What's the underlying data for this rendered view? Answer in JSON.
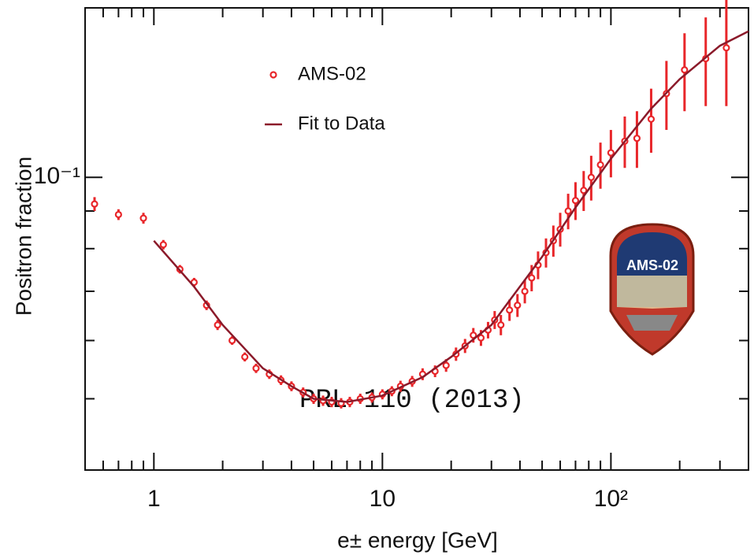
{
  "chart_data": {
    "type": "scatter",
    "x_label": "e± energy [GeV]",
    "y_label": "Positron fraction",
    "x_log": true,
    "y_log": true,
    "xlim": [
      0.5,
      400
    ],
    "ylim": [
      0.04,
      0.17
    ],
    "xticks": [
      1,
      10,
      {
        "value": 100,
        "label": "10²"
      }
    ],
    "yticks": [
      {
        "value": 0.1,
        "label": "10⁻¹"
      }
    ],
    "xminorticks": [
      0.6,
      0.7,
      0.8,
      0.9,
      2,
      3,
      4,
      5,
      6,
      7,
      8,
      9,
      20,
      30,
      40,
      50,
      60,
      70,
      80,
      90,
      200,
      300
    ],
    "yminorticks": [
      0.05,
      0.06,
      0.07,
      0.08,
      0.09
    ],
    "annotation": "PRL 110 (2013)",
    "logo_text": "AMS-02",
    "series": [
      {
        "name": "AMS-02",
        "color": "#e8262a",
        "kind": "points",
        "x": [
          0.55,
          0.7,
          0.9,
          1.1,
          1.3,
          1.5,
          1.7,
          1.9,
          2.2,
          2.5,
          2.8,
          3.2,
          3.6,
          4.0,
          4.5,
          5.0,
          5.5,
          6.0,
          6.6,
          7.2,
          8.0,
          9.0,
          10,
          11,
          12,
          13.5,
          15,
          17,
          19,
          21,
          23,
          25,
          27,
          29,
          31,
          33,
          36,
          39,
          42,
          45,
          48,
          52,
          56,
          60,
          65,
          70,
          76,
          82,
          90,
          100,
          115,
          130,
          150,
          175,
          210,
          260,
          320
        ],
        "values": [
          0.092,
          0.089,
          0.088,
          0.081,
          0.075,
          0.072,
          0.067,
          0.063,
          0.06,
          0.057,
          0.055,
          0.054,
          0.053,
          0.052,
          0.051,
          0.05,
          0.0497,
          0.0495,
          0.0493,
          0.0495,
          0.05,
          0.0502,
          0.0507,
          0.0512,
          0.052,
          0.0528,
          0.054,
          0.0545,
          0.0555,
          0.0575,
          0.059,
          0.061,
          0.0605,
          0.062,
          0.064,
          0.063,
          0.066,
          0.067,
          0.07,
          0.073,
          0.076,
          0.079,
          0.082,
          0.085,
          0.09,
          0.093,
          0.096,
          0.1,
          0.104,
          0.108,
          0.112,
          0.113,
          0.12,
          0.13,
          0.14,
          0.145,
          0.15
        ],
        "errors": [
          0.002,
          0.0015,
          0.0015,
          0.0012,
          0.001,
          0.001,
          0.001,
          0.001,
          0.0008,
          0.0008,
          0.0008,
          0.0008,
          0.0008,
          0.0008,
          0.0008,
          0.0008,
          0.0008,
          0.0008,
          0.0008,
          0.0008,
          0.0008,
          0.0008,
          0.0008,
          0.0008,
          0.0009,
          0.0009,
          0.001,
          0.001,
          0.0011,
          0.0012,
          0.0013,
          0.0014,
          0.0015,
          0.0016,
          0.0018,
          0.002,
          0.0022,
          0.0024,
          0.0026,
          0.003,
          0.0033,
          0.0036,
          0.004,
          0.0045,
          0.005,
          0.0055,
          0.006,
          0.007,
          0.0075,
          0.008,
          0.009,
          0.01,
          0.012,
          0.014,
          0.017,
          0.02,
          0.025
        ]
      },
      {
        "name": "Fit to Data",
        "color": "#8b1a2a",
        "kind": "line",
        "x": [
          1,
          1.5,
          2,
          3,
          4,
          5,
          7,
          10,
          15,
          20,
          30,
          50,
          70,
          100,
          150,
          200,
          300,
          400
        ],
        "values": [
          0.082,
          0.071,
          0.063,
          0.055,
          0.052,
          0.05,
          0.0495,
          0.0505,
          0.0535,
          0.057,
          0.063,
          0.078,
          0.091,
          0.106,
          0.124,
          0.136,
          0.151,
          0.158
        ]
      }
    ]
  }
}
